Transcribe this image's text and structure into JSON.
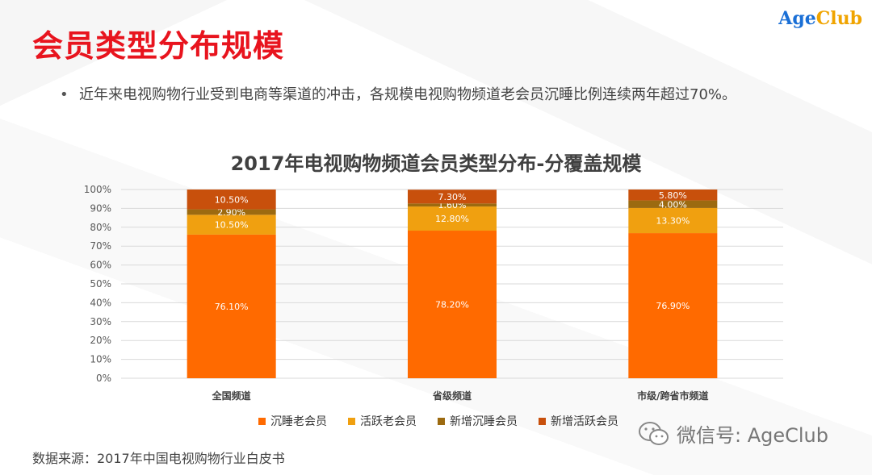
{
  "page": {
    "title": "会员类型分布规模",
    "logo": {
      "part1": "Age",
      "part2": "Club"
    },
    "bullet": "近年来电视购物行业受到电商等渠道的冲击，各规模电视购物频道老会员沉睡比例连续两年超过70%。",
    "source": "数据来源：2017年中国电视购物行业白皮书",
    "watermark": "微信号: AgeClub"
  },
  "chart_data": {
    "type": "bar",
    "stacked": true,
    "title": "2017年电视购物频道会员类型分布-分覆盖规模",
    "categories": [
      "全国频道",
      "省级频道",
      "市级/跨省市频道"
    ],
    "ylim": [
      0,
      100
    ],
    "yticks": [
      "0%",
      "10%",
      "20%",
      "30%",
      "40%",
      "50%",
      "60%",
      "70%",
      "80%",
      "90%",
      "100%"
    ],
    "grid": true,
    "legend_position": "bottom",
    "series": [
      {
        "name": "沉睡老会员",
        "color": "#ff6a00",
        "values": [
          76.1,
          78.2,
          76.9
        ],
        "labels": [
          "76.10%",
          "78.20%",
          "76.90%"
        ]
      },
      {
        "name": "活跃老会员",
        "color": "#f0a010",
        "values": [
          10.5,
          12.8,
          13.3
        ],
        "labels": [
          "10.50%",
          "12.80%",
          "13.30%"
        ]
      },
      {
        "name": "新增沉睡会员",
        "color": "#9c6a10",
        "values": [
          2.9,
          1.6,
          4.0
        ],
        "labels": [
          "2.90%",
          "1.60%",
          "4.00%"
        ]
      },
      {
        "name": "新增活跃会员",
        "color": "#c8500c",
        "values": [
          10.5,
          7.3,
          5.8
        ],
        "labels": [
          "10.50%",
          "7.30%",
          "5.80%"
        ]
      }
    ]
  }
}
